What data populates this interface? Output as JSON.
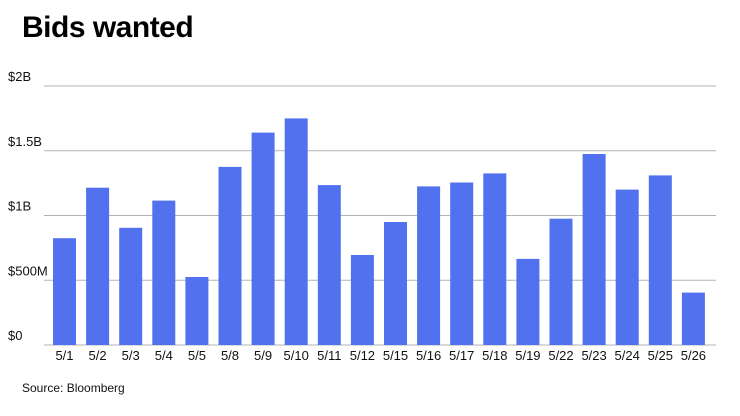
{
  "chart_data": {
    "type": "bar",
    "title": "Bids wanted",
    "xlabel": "",
    "ylabel": "",
    "categories": [
      "5/1",
      "5/2",
      "5/3",
      "5/4",
      "5/5",
      "5/8",
      "5/9",
      "5/10",
      "5/11",
      "5/12",
      "5/15",
      "5/16",
      "5/17",
      "5/18",
      "5/19",
      "5/22",
      "5/23",
      "5/24",
      "5/25",
      "5/26"
    ],
    "values": [
      0.825,
      1.215,
      0.905,
      1.115,
      0.525,
      1.375,
      1.64,
      1.75,
      1.235,
      0.695,
      0.95,
      1.225,
      1.255,
      1.325,
      0.665,
      0.975,
      1.475,
      1.2,
      1.31,
      0.405
    ],
    "ylim": [
      0,
      2
    ],
    "yticks": [
      0,
      0.5,
      1,
      1.5,
      2
    ],
    "ytick_labels": [
      "$0",
      "$500M",
      "$1B",
      "$1.5B",
      "$2B"
    ],
    "grid": true,
    "legend": "none",
    "bar_color": "#5271ee",
    "grid_color": "#b3b3b3"
  },
  "source": "Source: Bloomberg"
}
